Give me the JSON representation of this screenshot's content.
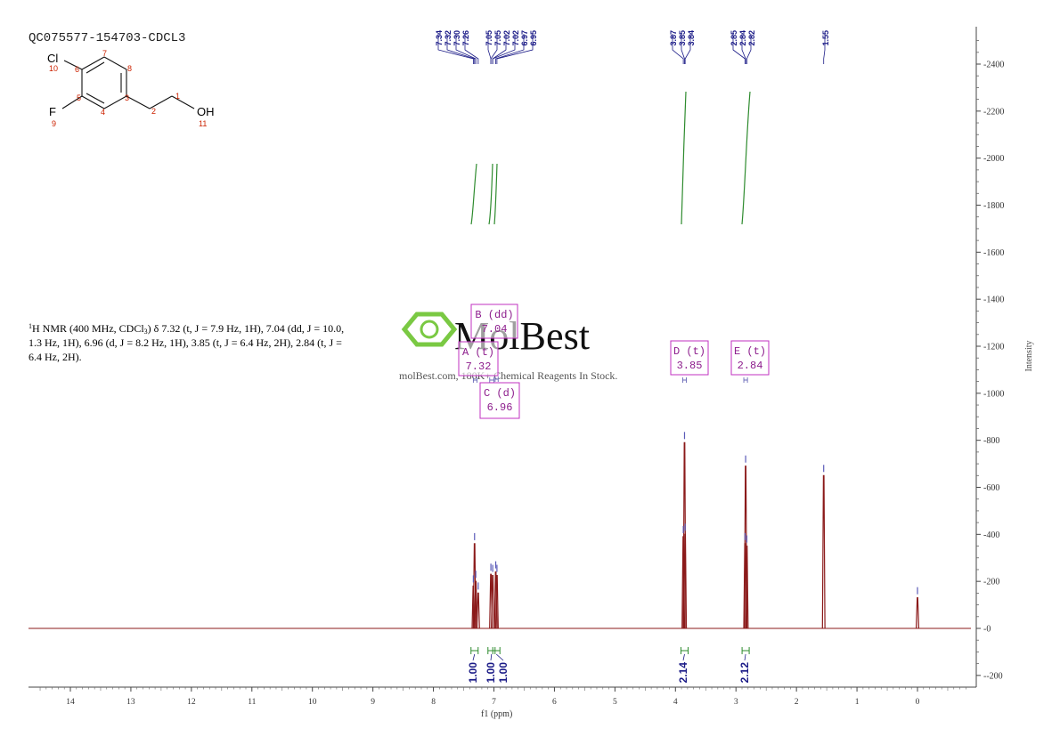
{
  "sample_id": "QC075577-154703-CDCL3",
  "watermark": {
    "brand": "MolBest",
    "tagline": "molBest.com, 180K+ Chemical Reagents In Stock."
  },
  "nmr_description": {
    "line1": "H NMR (400 MHz, CDCl",
    "line1_sup": "1",
    "line1_sub": "3",
    "line1_rest": ") δ 7.32 (t, J = 7.9 Hz, 1H), 7.04 (dd, J = 10.0,",
    "line2": "1.3 Hz, 1H), 6.96 (d, J = 8.2 Hz, 1H), 3.85 (t, J = 6.4 Hz, 2H), 2.84 (t, J =",
    "line3": "6.4 Hz, 2H)."
  },
  "structure": {
    "atoms": [
      "Cl",
      "F",
      "OH"
    ],
    "numbers": [
      "10",
      "6",
      "7",
      "8",
      "5",
      "3",
      "1",
      "2",
      "4",
      "9",
      "11"
    ]
  },
  "peak_label_groups": [
    {
      "labels": [
        "7.34",
        "7.32",
        "7.30",
        "7.26"
      ]
    },
    {
      "labels": [
        "7.05",
        "7.05",
        "7.02",
        "7.02",
        "6.97",
        "6.95"
      ]
    },
    {
      "labels": [
        "3.87",
        "3.85",
        "3.84"
      ]
    },
    {
      "labels": [
        "2.85",
        "2.84",
        "2.82"
      ]
    },
    {
      "labels": [
        "1.55"
      ]
    }
  ],
  "multiplets": [
    {
      "title": "A (t)",
      "value": "7.32"
    },
    {
      "title": "B (dd)",
      "value": "7.04"
    },
    {
      "title": "C (d)",
      "value": "6.96"
    },
    {
      "title": "D (t)",
      "value": "3.85"
    },
    {
      "title": "E (t)",
      "value": "2.84"
    }
  ],
  "integrals": [
    "1.00",
    "1.00",
    "1.00",
    "2.14",
    "2.12"
  ],
  "chart_data": {
    "type": "line",
    "xlabel": "f1 (ppm)",
    "ylabel": "Intensity",
    "x_ticks": [
      14,
      13,
      12,
      11,
      10,
      9,
      8,
      7,
      6,
      5,
      4,
      3,
      2,
      1,
      0
    ],
    "y_ticks": [
      2400,
      2200,
      2000,
      1800,
      1600,
      1400,
      1200,
      1000,
      800,
      600,
      400,
      200,
      0,
      -200
    ],
    "xlim": [
      14.7,
      -0.9
    ],
    "ylim": [
      -250,
      2550
    ],
    "x_reversed": true,
    "peaks": [
      {
        "ppm": 7.34,
        "height": 180
      },
      {
        "ppm": 7.32,
        "height": 360
      },
      {
        "ppm": 7.3,
        "height": 200
      },
      {
        "ppm": 7.26,
        "height": 150
      },
      {
        "ppm": 7.05,
        "height": 230
      },
      {
        "ppm": 7.02,
        "height": 225
      },
      {
        "ppm": 6.97,
        "height": 240
      },
      {
        "ppm": 6.95,
        "height": 225
      },
      {
        "ppm": 3.87,
        "height": 390
      },
      {
        "ppm": 3.85,
        "height": 790
      },
      {
        "ppm": 3.84,
        "height": 400
      },
      {
        "ppm": 2.85,
        "height": 360
      },
      {
        "ppm": 2.84,
        "height": 690
      },
      {
        "ppm": 2.82,
        "height": 350
      },
      {
        "ppm": 1.55,
        "height": 650
      },
      {
        "ppm": 0.0,
        "height": 130
      }
    ],
    "colors": {
      "spectrum": "#8b1a1a",
      "integral": "#2e8b2e",
      "peak_label": "#1b1b87",
      "multiplet": "#c030c0"
    }
  }
}
